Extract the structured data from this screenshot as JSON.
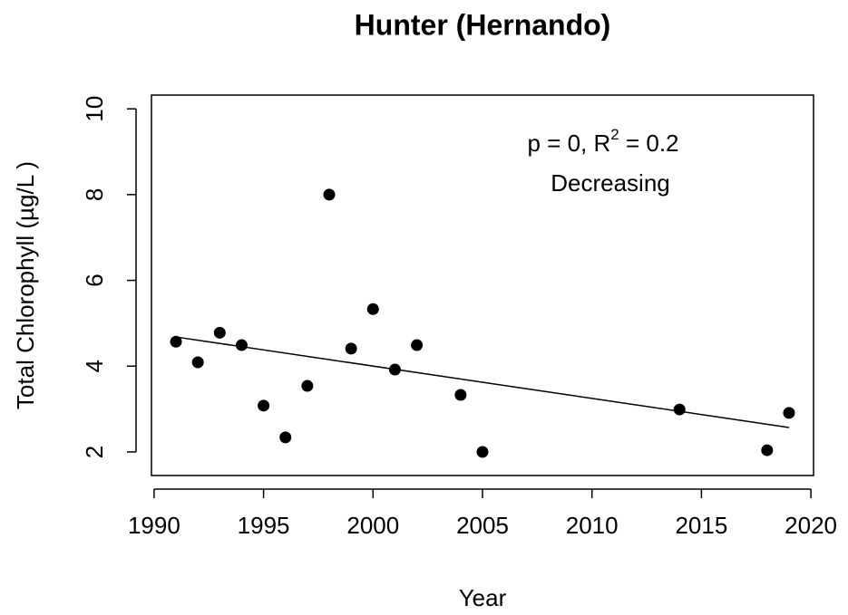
{
  "chart_data": {
    "type": "scatter",
    "title": "Hunter (Hernando)",
    "x_label": "Year",
    "y_label": "Total Chlorophyll (µg/L )",
    "x": [
      1991,
      1992,
      1993,
      1994,
      1995,
      1996,
      1997,
      1998,
      1999,
      2000,
      2001,
      2002,
      2004,
      2005,
      2014,
      2018,
      2019
    ],
    "values": [
      4.57,
      4.09,
      4.78,
      4.49,
      3.08,
      2.34,
      3.54,
      8.0,
      4.41,
      5.33,
      3.92,
      4.49,
      3.33,
      2.0,
      2.99,
      2.04,
      2.91
    ],
    "color": "#000000",
    "trend": {
      "x": [
        1991,
        2019
      ],
      "y": [
        4.68,
        2.57
      ],
      "color": "#000000"
    },
    "annotation": {
      "text": "p = 0, R",
      "superscript": "2",
      "suffix": " = 0.2",
      "trend_label": "Decreasing"
    },
    "xlim": [
      1989.88,
      2020.12
    ],
    "xticks": [
      1990,
      1995,
      2000,
      2005,
      2010,
      2015,
      2020
    ],
    "ylim": [
      1.45,
      10.32
    ],
    "yticks": [
      2,
      4,
      6,
      8,
      10
    ],
    "grid": false
  }
}
